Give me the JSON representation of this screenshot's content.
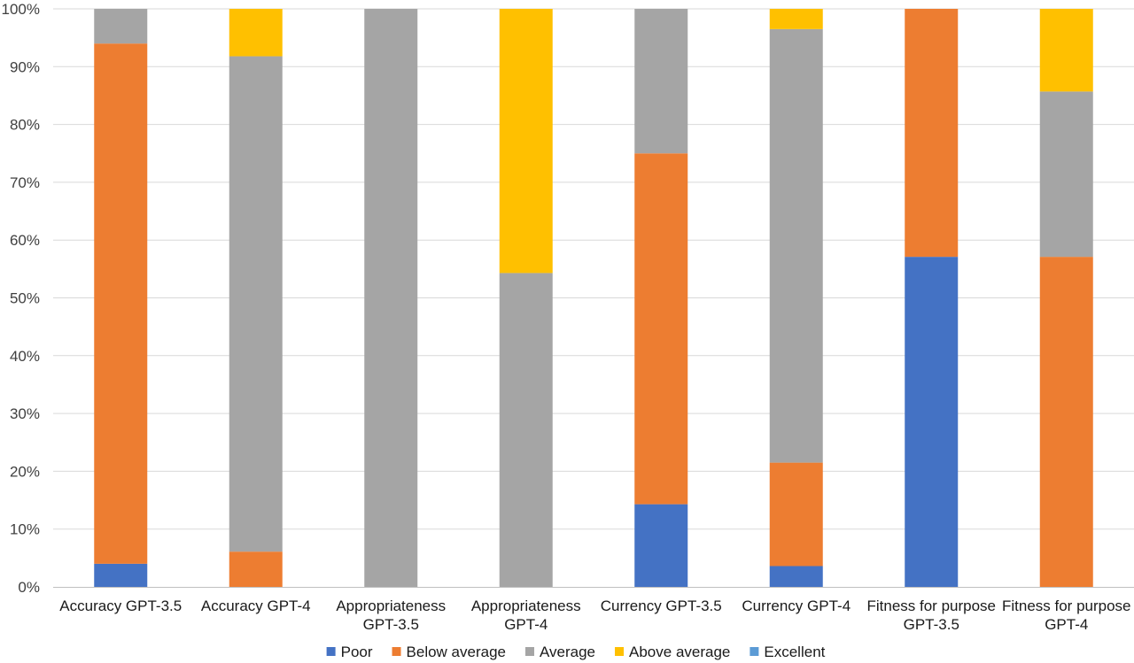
{
  "chart_data": {
    "type": "bar",
    "stacked": true,
    "percent": true,
    "categories": [
      [
        "Accuracy GPT-3.5"
      ],
      [
        "Accuracy GPT-4"
      ],
      [
        "Appropriateness",
        "GPT-3.5"
      ],
      [
        "Appropriateness",
        "GPT-4"
      ],
      [
        "Currency GPT-3.5"
      ],
      [
        "Currency GPT-4"
      ],
      [
        "Fitness for purpose",
        "GPT-3.5"
      ],
      [
        "Fitness for purpose",
        "GPT-4"
      ]
    ],
    "series": [
      {
        "name": "Poor",
        "color": "#4472c4",
        "values": [
          4,
          0,
          0,
          0,
          14.3,
          3.6,
          57.1,
          0
        ]
      },
      {
        "name": "Below average",
        "color": "#ed7d31",
        "values": [
          90,
          6.1,
          0,
          0,
          60.7,
          17.9,
          42.9,
          57.1
        ]
      },
      {
        "name": "Average",
        "color": "#a5a5a5",
        "values": [
          6,
          85.7,
          100,
          54.3,
          25,
          75,
          0,
          28.6
        ]
      },
      {
        "name": "Above average",
        "color": "#ffc000",
        "values": [
          0,
          8.2,
          0,
          45.7,
          0,
          3.5,
          0,
          14.3
        ]
      },
      {
        "name": "Excellent",
        "color": "#5b9bd5",
        "values": [
          0,
          0,
          0,
          0,
          0,
          0,
          0,
          0
        ]
      }
    ],
    "ylim": [
      0,
      100
    ],
    "yticks": [
      "0%",
      "10%",
      "20%",
      "30%",
      "40%",
      "50%",
      "60%",
      "70%",
      "80%",
      "90%",
      "100%"
    ],
    "grid": true,
    "legend": "bottom"
  }
}
